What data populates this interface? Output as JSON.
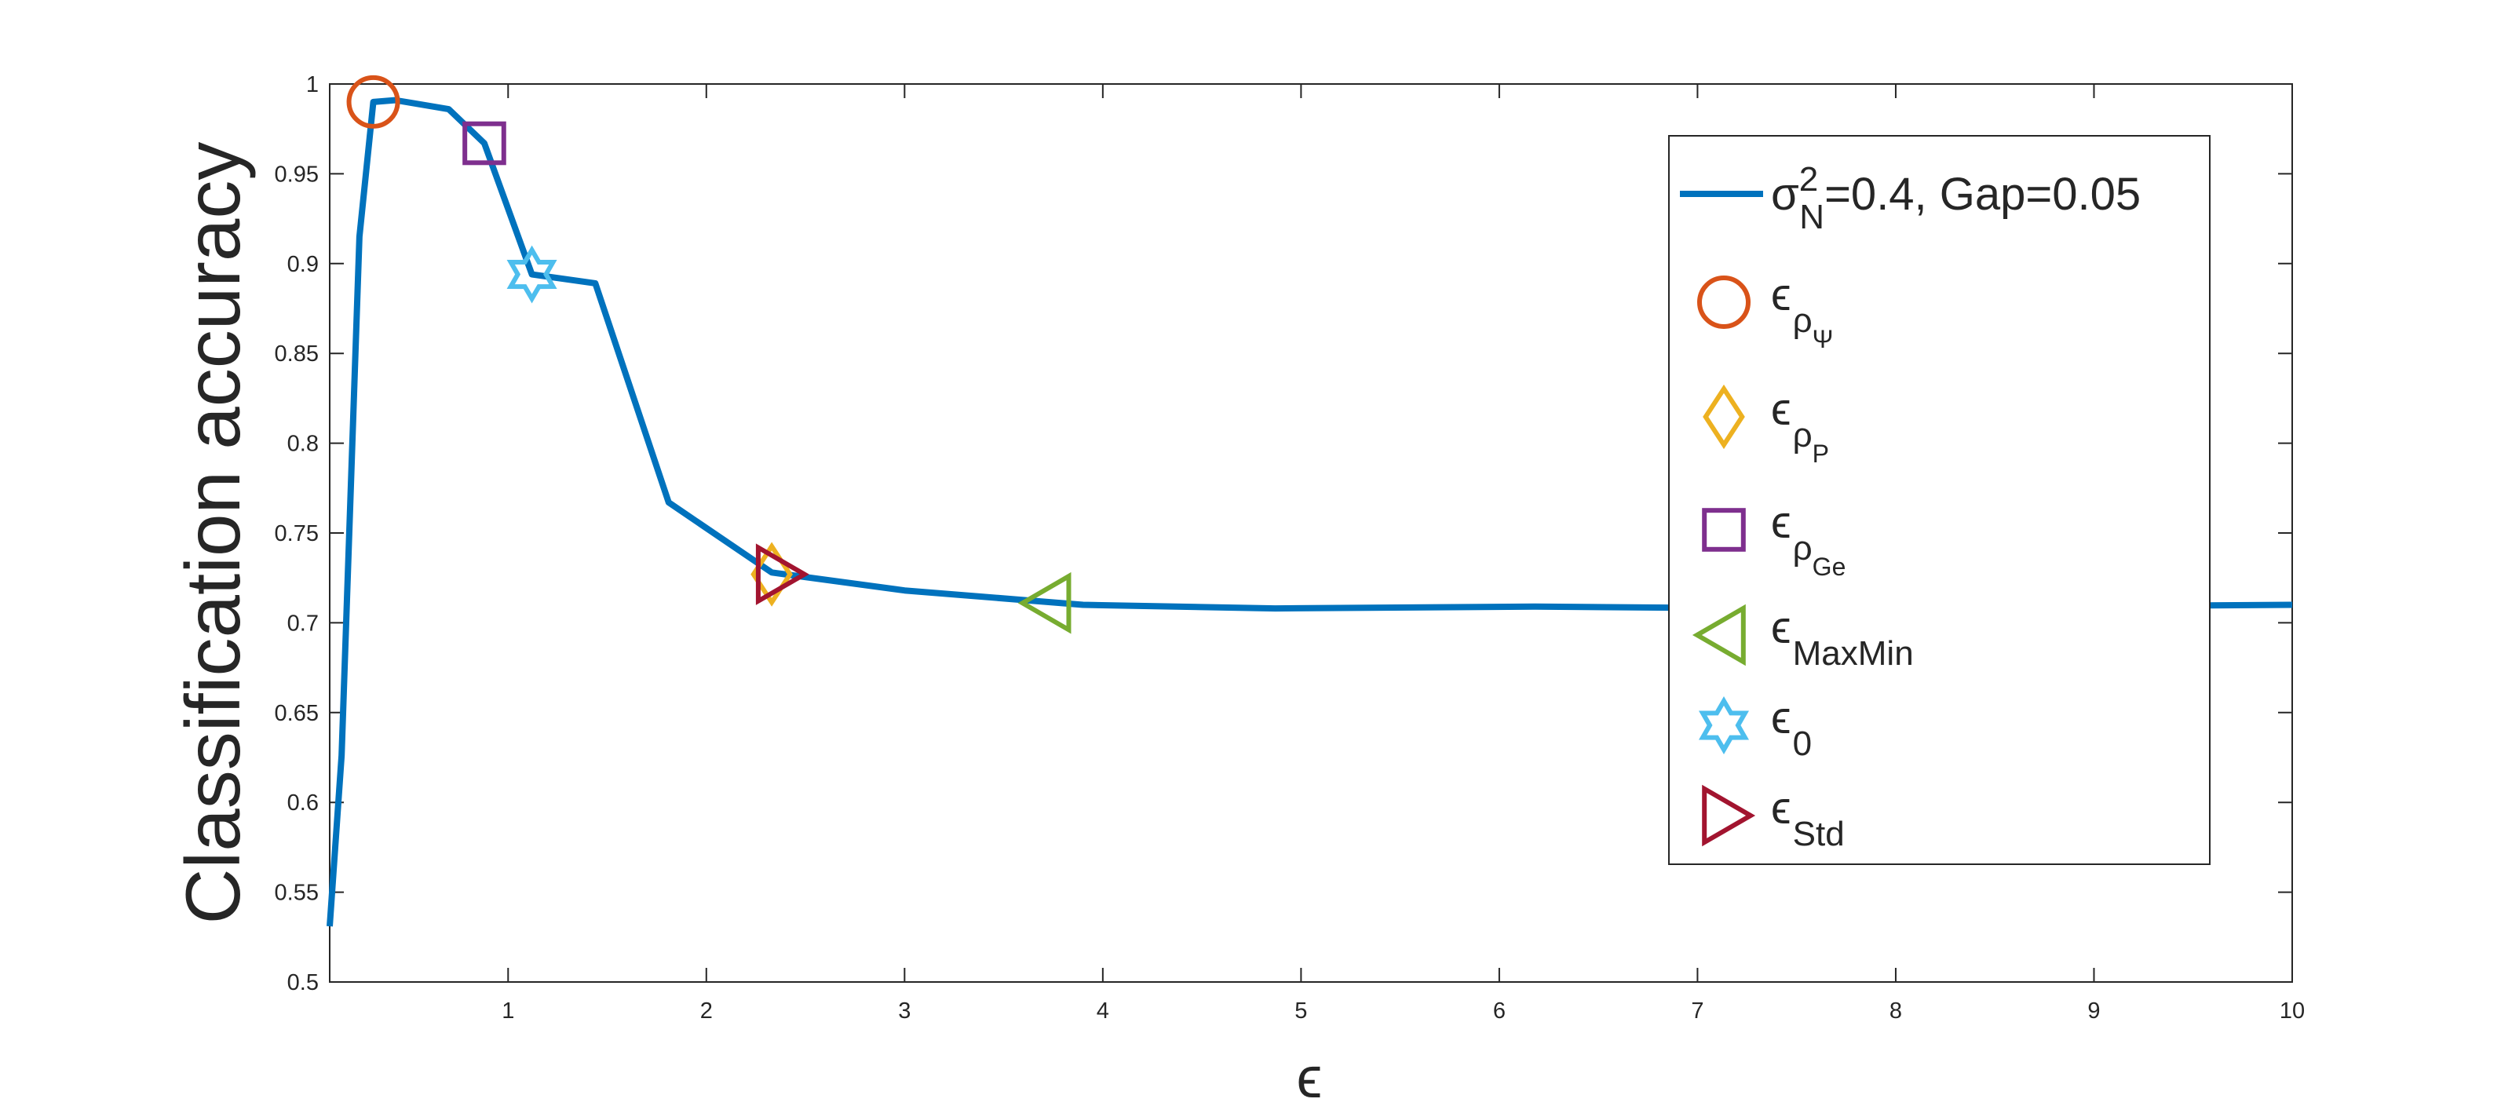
{
  "chart_data": {
    "type": "line",
    "xlabel": "ϵ",
    "ylabel": "Classification accuracy",
    "xlim": [
      0.1,
      10
    ],
    "ylim": [
      0.5,
      1
    ],
    "xticks": [
      1,
      2,
      3,
      4,
      5,
      6,
      7,
      8,
      9,
      10
    ],
    "yticks": [
      0.5,
      0.55,
      0.6,
      0.65,
      0.7,
      0.75,
      0.8,
      0.85,
      0.9,
      0.95,
      1
    ],
    "legend": "upper right",
    "series": [
      {
        "name": [
          "σ",
          "2",
          "N",
          "=0.4, Gap=0.05"
        ],
        "color": "#0072BD",
        "marker": "none",
        "x": [
          0.1,
          0.16,
          0.25,
          0.32,
          0.43,
          0.7,
          0.88,
          1.12,
          1.44,
          1.81,
          2.33,
          3.0,
          3.9,
          4.87,
          6.18,
          7.4,
          10
        ],
        "values": [
          0.531,
          0.626,
          0.915,
          0.99,
          0.991,
          0.986,
          0.967,
          0.894,
          0.889,
          0.767,
          0.728,
          0.718,
          0.71,
          0.708,
          0.709,
          0.708,
          0.71
        ]
      },
      {
        "name": [
          "ϵ",
          "ρ",
          "Ψ"
        ],
        "color": "#D95319",
        "marker": "circle",
        "x": [
          0.32
        ],
        "values": [
          0.99
        ]
      },
      {
        "name": [
          "ϵ",
          "ρ",
          "P"
        ],
        "color": "#EDB120",
        "marker": "diamond",
        "x": [
          2.33
        ],
        "values": [
          0.727
        ]
      },
      {
        "name": [
          "ϵ",
          "ρ",
          "Ge"
        ],
        "color": "#7E2F8E",
        "marker": "square",
        "x": [
          0.88
        ],
        "values": [
          0.967
        ]
      },
      {
        "name": [
          "ϵ",
          "MaxMin"
        ],
        "color": "#77AC30",
        "marker": "triangle-left",
        "x": [
          3.73
        ],
        "values": [
          0.711
        ]
      },
      {
        "name": [
          "ϵ",
          "0"
        ],
        "color": "#4DBEEE",
        "marker": "hexagram",
        "x": [
          1.12
        ],
        "values": [
          0.894
        ]
      },
      {
        "name": [
          "ϵ",
          "Std"
        ],
        "color": "#A2142F",
        "marker": "triangle-right",
        "x": [
          2.36
        ],
        "values": [
          0.727
        ]
      }
    ]
  }
}
